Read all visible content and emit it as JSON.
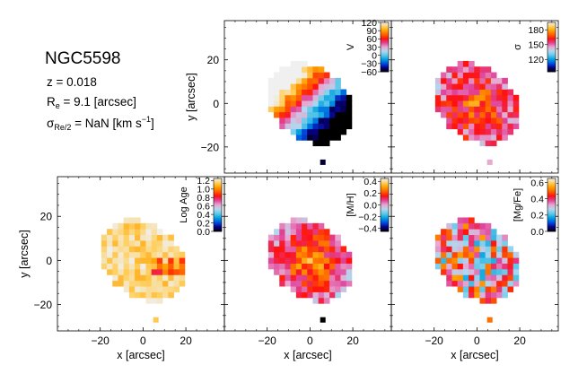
{
  "info": {
    "galaxy": "NGC5598",
    "z_label": "z = 0.018",
    "re_prefix": "R",
    "re_sub": "e",
    "re_suffix": " = 9.1 [arcsec]",
    "sigma_prefix": "σ",
    "sigma_sub": "Re/2",
    "sigma_mid": " = NaN [km s",
    "sigma_sup": "−1",
    "sigma_suffix": "]"
  },
  "chart_data": [
    {
      "id": "V",
      "type": "heatmap",
      "title": "",
      "quantity": "velocity",
      "cbar_label": "V",
      "range": [
        -60,
        120
      ],
      "cbar_ticks": [
        {
          "label": "120",
          "value": 120
        },
        {
          "label": "90",
          "value": 90
        },
        {
          "label": "60",
          "value": 60
        },
        {
          "label": "30",
          "value": 30
        },
        {
          "label": "0",
          "value": 0
        },
        {
          "label": "−30",
          "value": -30
        },
        {
          "label": "−60",
          "value": -60
        }
      ],
      "xlabel": "",
      "ylabel": "y [arcsec]",
      "xlim": [
        -40,
        38
      ],
      "ylim": [
        -32,
        38
      ],
      "xticks": [],
      "yticks": [
        "20",
        "0",
        "−20"
      ],
      "colormap": [
        "#000000",
        "#08008c",
        "#0050e0",
        "#00a0e0",
        "#60c8e8",
        "#b0d8f0",
        "#e8a8d0",
        "#e0449a",
        "#ff1010",
        "#ff6000",
        "#ffa000",
        "#ffd060",
        "#f0f0f0"
      ],
      "map_function": "velocity",
      "psf_value": -55
    },
    {
      "id": "sigma",
      "type": "heatmap",
      "title": "",
      "quantity": "dispersion",
      "cbar_label": "σ",
      "range": [
        95,
        195
      ],
      "cbar_ticks": [
        {
          "label": "180",
          "value": 180
        },
        {
          "label": "150",
          "value": 150
        },
        {
          "label": "120",
          "value": 120
        }
      ],
      "xlabel": "",
      "ylabel": "",
      "xlim": [
        -40,
        38
      ],
      "ylim": [
        -32,
        38
      ],
      "xticks": [],
      "yticks": [],
      "colormap": [
        "#000000",
        "#08008c",
        "#0050e0",
        "#00a0e0",
        "#60c8e8",
        "#b0d8f0",
        "#e8a8d0",
        "#e0449a",
        "#ff1010",
        "#ff6000",
        "#ffa000",
        "#ffd060",
        "#f0f0f0"
      ],
      "map_function": "dispersion",
      "psf_value": 145
    },
    {
      "id": "age",
      "type": "heatmap",
      "title": "",
      "quantity": "log age",
      "cbar_label": "Log Age",
      "range": [
        0.0,
        1.25
      ],
      "cbar_ticks": [
        {
          "label": "1.2",
          "value": 1.2
        },
        {
          "label": "1.0",
          "value": 1.0
        },
        {
          "label": "0.8",
          "value": 0.8
        },
        {
          "label": "0.6",
          "value": 0.6
        },
        {
          "label": "0.4",
          "value": 0.4
        },
        {
          "label": "0.2",
          "value": 0.2
        },
        {
          "label": "0.0",
          "value": 0.0
        }
      ],
      "xlabel": "x [arcsec]",
      "ylabel": "y [arcsec]",
      "xlim": [
        -40,
        38
      ],
      "ylim": [
        -32,
        38
      ],
      "xticks": [
        "−20",
        "0",
        "20"
      ],
      "yticks": [
        "20",
        "0",
        "−20"
      ],
      "colormap": [
        "#000000",
        "#08008c",
        "#0050e0",
        "#00a0e0",
        "#60c8e8",
        "#b0d8f0",
        "#e8a8d0",
        "#e0449a",
        "#ff1010",
        "#ff6000",
        "#ffa000",
        "#ffd060",
        "#f0f0f0"
      ],
      "map_function": "age",
      "psf_value": 1.13
    },
    {
      "id": "mh",
      "type": "heatmap",
      "title": "",
      "quantity": "metallicity",
      "cbar_label": "[M/H]",
      "range": [
        -0.45,
        0.45
      ],
      "cbar_ticks": [
        {
          "label": "0.4",
          "value": 0.4
        },
        {
          "label": "0.2",
          "value": 0.2
        },
        {
          "label": "0.0",
          "value": 0.0
        },
        {
          "label": "−0.2",
          "value": -0.2
        },
        {
          "label": "−0.4",
          "value": -0.4
        }
      ],
      "xlabel": "x [arcsec]",
      "ylabel": "",
      "xlim": [
        -40,
        38
      ],
      "ylim": [
        -32,
        38
      ],
      "xticks": [
        "−20",
        "0",
        "20"
      ],
      "yticks": [],
      "colormap": [
        "#000000",
        "#08008c",
        "#0050e0",
        "#00a0e0",
        "#60c8e8",
        "#b0d8f0",
        "#e8a8d0",
        "#e0449a",
        "#ff1010",
        "#ff6000",
        "#ffa000",
        "#ffd060",
        "#f0f0f0"
      ],
      "map_function": "metal",
      "psf_value": -0.45
    },
    {
      "id": "mgfe",
      "type": "heatmap",
      "title": "",
      "quantity": "alpha enhancement",
      "cbar_label": "[Mg/Fe]",
      "range": [
        0.0,
        0.65
      ],
      "cbar_ticks": [
        {
          "label": "0.6",
          "value": 0.6
        },
        {
          "label": "0.4",
          "value": 0.4
        },
        {
          "label": "0.2",
          "value": 0.2
        },
        {
          "label": "0.0",
          "value": 0.0
        }
      ],
      "xlabel": "x [arcsec]",
      "ylabel": "",
      "xlim": [
        -40,
        38
      ],
      "ylim": [
        -32,
        38
      ],
      "xticks": [
        "−20",
        "0",
        "20"
      ],
      "yticks": [],
      "colormap": [
        "#000000",
        "#08008c",
        "#0050e0",
        "#00a0e0",
        "#60c8e8",
        "#b0d8f0",
        "#e8a8d0",
        "#e0449a",
        "#ff1010",
        "#ff6000",
        "#ffa000",
        "#ffd060",
        "#f0f0f0"
      ],
      "map_function": "alpha",
      "psf_value": 0.5
    }
  ]
}
